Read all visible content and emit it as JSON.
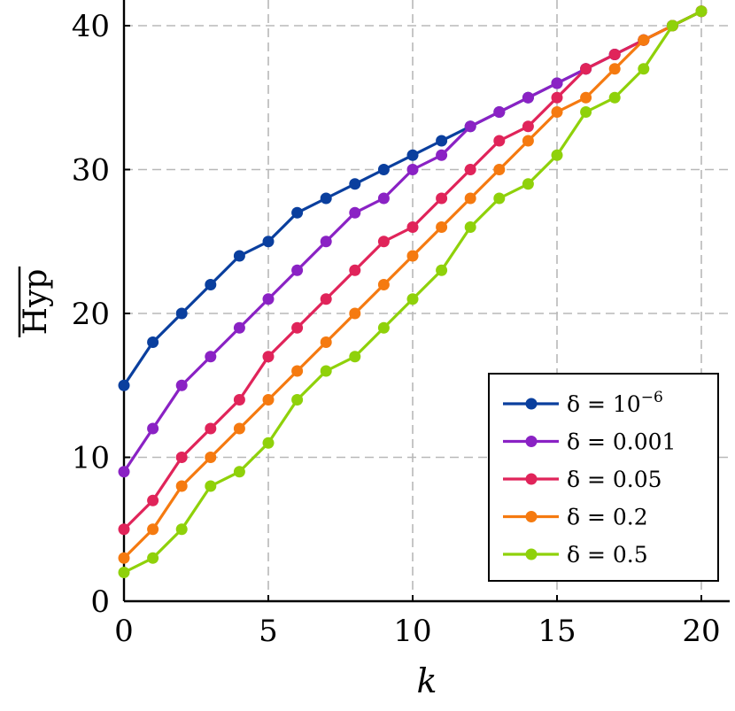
{
  "chart_data": {
    "type": "line",
    "xlabel": "k",
    "ylabel": "Hyp",
    "ylabel_overline": true,
    "xlim": [
      0,
      20
    ],
    "ylim": [
      0,
      42
    ],
    "xticks": [
      0,
      5,
      10,
      15,
      20
    ],
    "yticks": [
      0,
      10,
      20,
      30,
      40
    ],
    "grid": true,
    "grid_style": "dashed",
    "legend_position": "bottom-right",
    "x": [
      0,
      1,
      2,
      3,
      4,
      5,
      6,
      7,
      8,
      9,
      10,
      11,
      12,
      13,
      14,
      15,
      16,
      17,
      18,
      19,
      20
    ],
    "series": [
      {
        "name": "δ = 10",
        "name_sup": "−6",
        "color": "#0a3f9e",
        "values": [
          15,
          18,
          20,
          22,
          24,
          25,
          27,
          28,
          29,
          30,
          31,
          32,
          33,
          34,
          35,
          36,
          37,
          38,
          39,
          40,
          41
        ]
      },
      {
        "name": "δ = 0.001",
        "color": "#8a22c4",
        "values": [
          9,
          12,
          15,
          17,
          19,
          21,
          23,
          25,
          27,
          28,
          30,
          31,
          33,
          34,
          35,
          36,
          37,
          38,
          39,
          40,
          41
        ]
      },
      {
        "name": "δ = 0.05",
        "color": "#e0245a",
        "values": [
          5,
          7,
          10,
          12,
          14,
          17,
          19,
          21,
          23,
          25,
          26,
          28,
          30,
          32,
          33,
          35,
          37,
          38,
          39,
          40,
          41
        ]
      },
      {
        "name": "δ = 0.2",
        "color": "#f57a10",
        "values": [
          3,
          5,
          8,
          10,
          12,
          14,
          16,
          18,
          20,
          22,
          24,
          26,
          28,
          30,
          32,
          34,
          35,
          37,
          39,
          40,
          41
        ]
      },
      {
        "name": "δ = 0.5",
        "color": "#8fd10a",
        "values": [
          2,
          3,
          5,
          8,
          9,
          11,
          14,
          16,
          17,
          19,
          21,
          23,
          26,
          28,
          29,
          31,
          34,
          35,
          37,
          40,
          41
        ]
      }
    ]
  }
}
